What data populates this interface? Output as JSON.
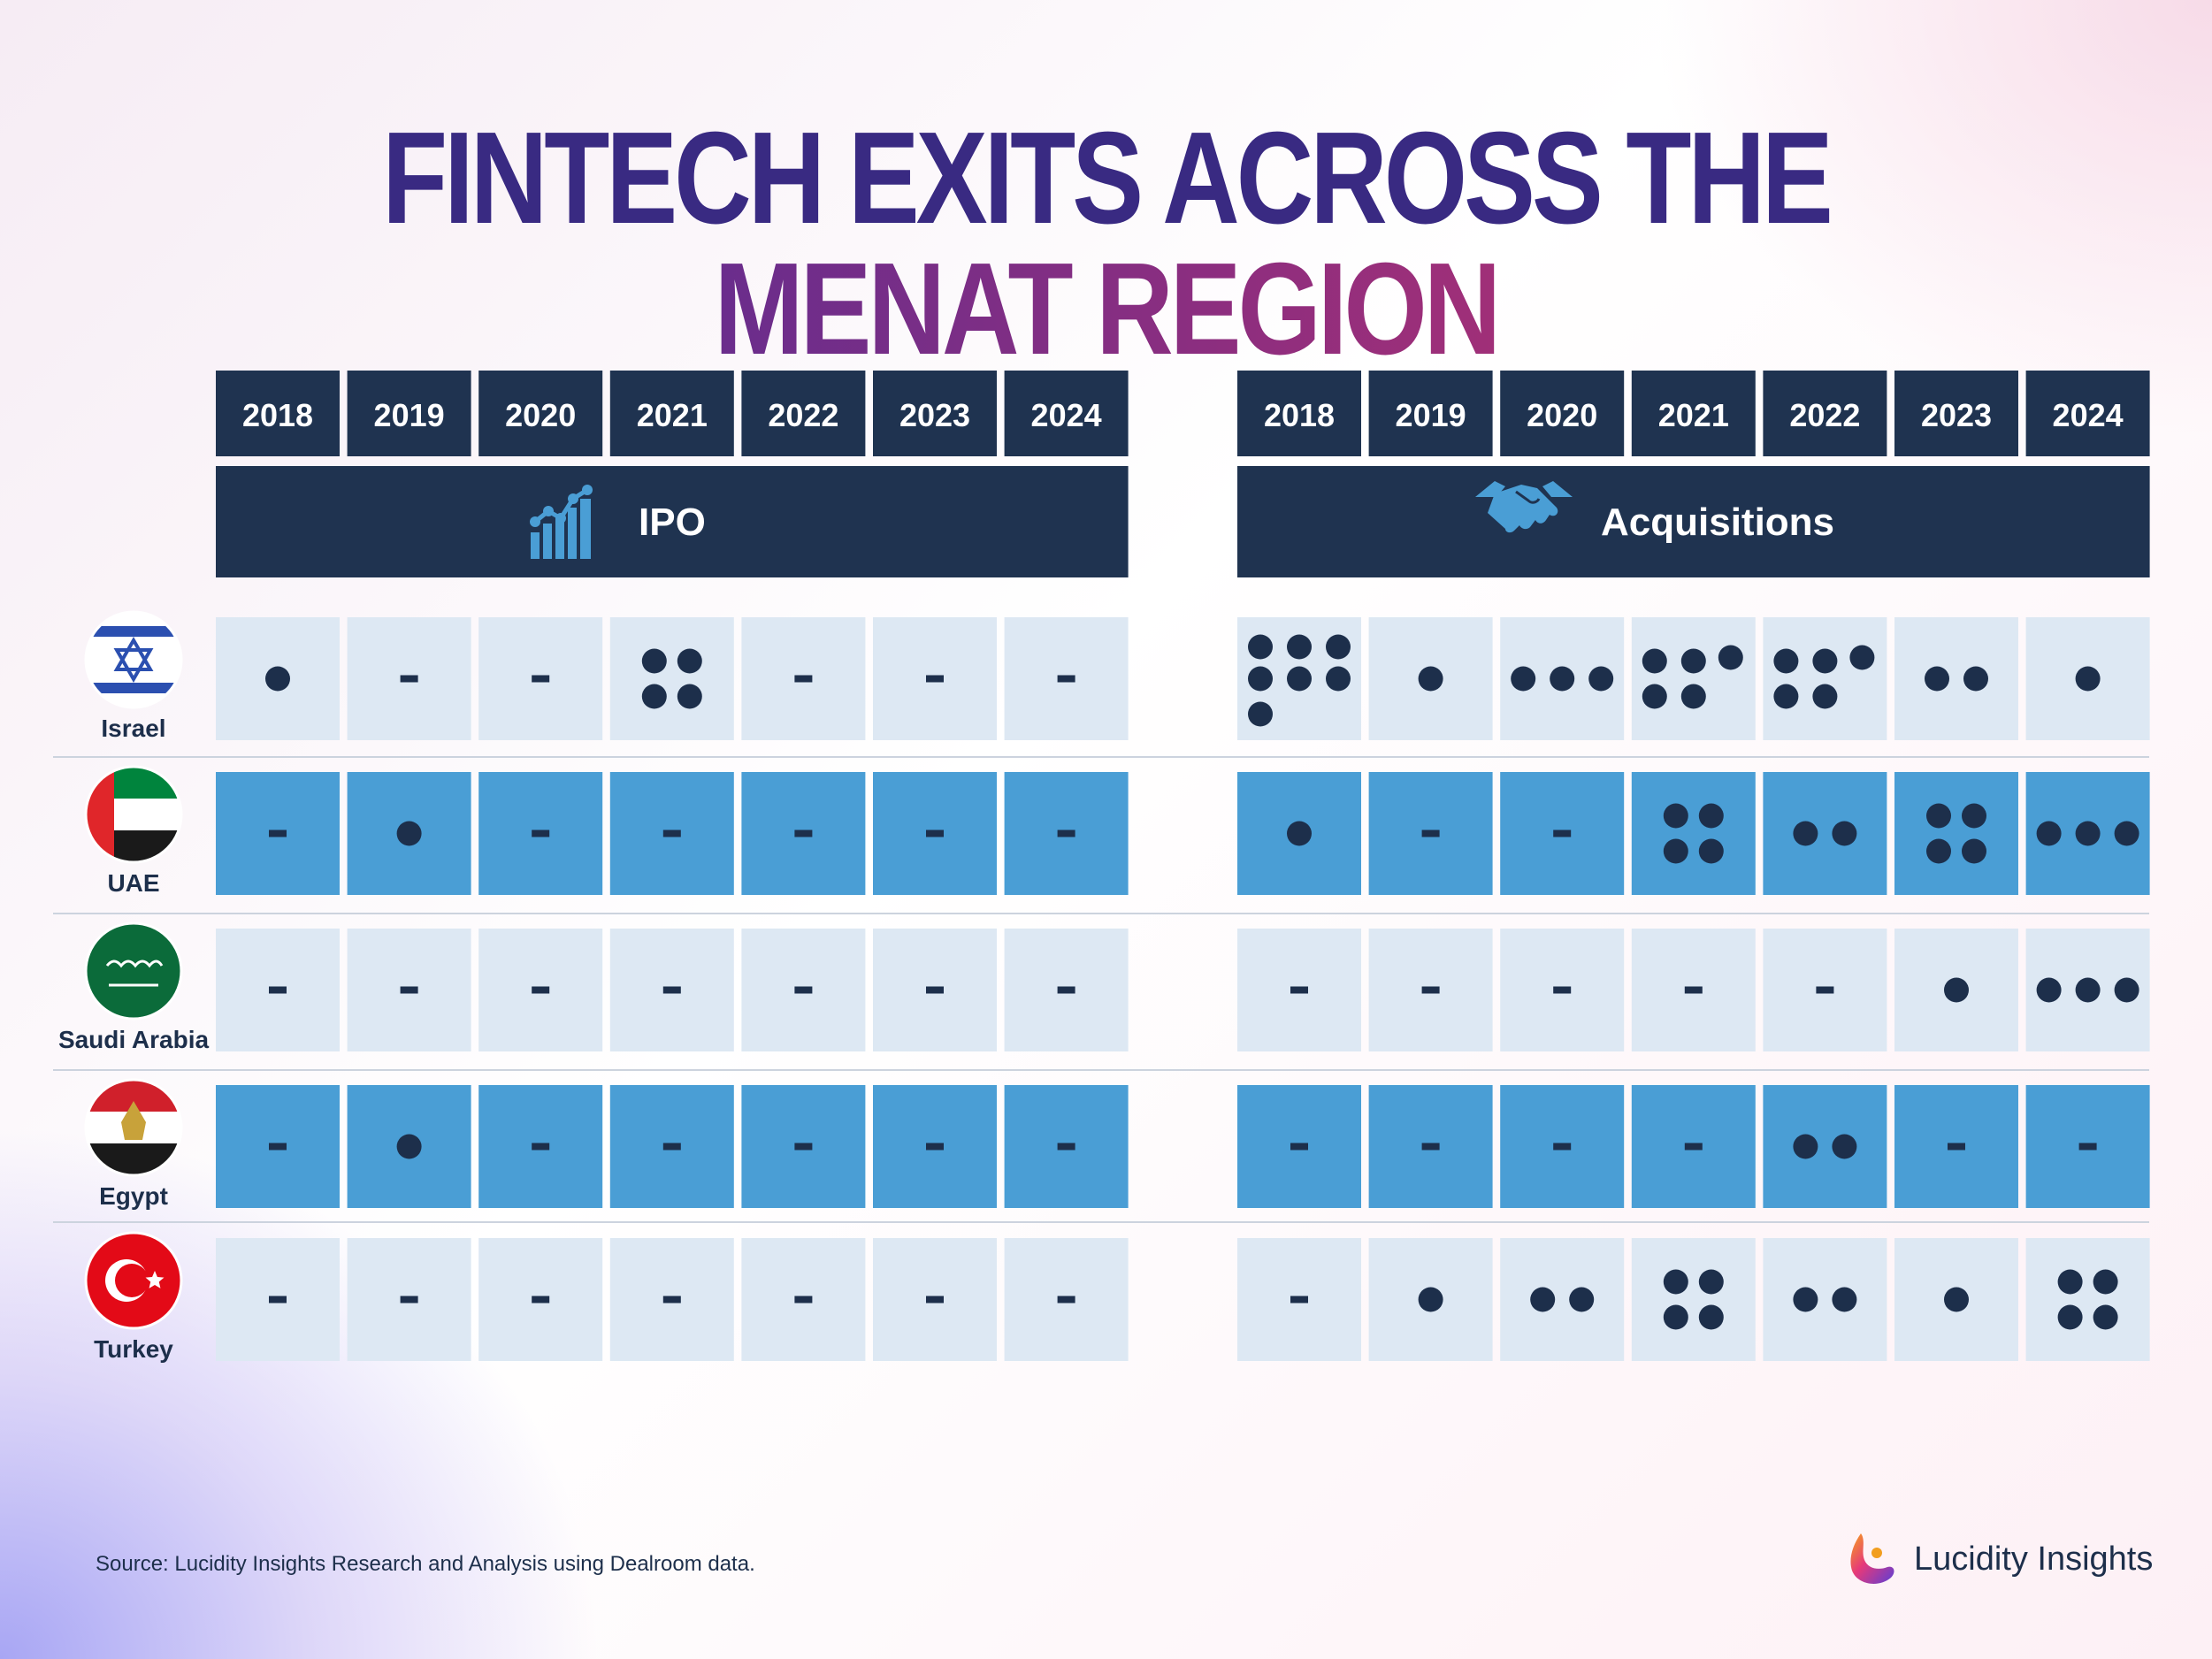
{
  "title": {
    "part1": "FINTECH EXITS ACROSS THE",
    "part2": "MENAT REGION"
  },
  "colors": {
    "navy": "#1f3350",
    "blue": "#4a9ed5",
    "light_cell": "#dde8f3",
    "dot": "#1d2f4b"
  },
  "chart_data": {
    "type": "table",
    "title": "FINTECH EXITS ACROSS THE MENAT REGION",
    "years": [
      "2018",
      "2019",
      "2020",
      "2021",
      "2022",
      "2023",
      "2024"
    ],
    "groups": [
      {
        "name": "IPO",
        "icon": "bar-growth-icon"
      },
      {
        "name": "Acquisitions",
        "icon": "handshake-icon"
      }
    ],
    "rows": [
      {
        "country": "Israel",
        "flag": "israel-flag-icon",
        "ipo": [
          1,
          0,
          0,
          4,
          0,
          0,
          0
        ],
        "acquisitions": [
          7,
          1,
          3,
          5,
          5,
          2,
          1
        ]
      },
      {
        "country": "UAE",
        "flag": "uae-flag-icon",
        "ipo": [
          0,
          1,
          0,
          0,
          0,
          0,
          0
        ],
        "acquisitions": [
          1,
          0,
          0,
          4,
          2,
          4,
          3
        ]
      },
      {
        "country": "Saudi Arabia",
        "flag": "saudi-flag-icon",
        "ipo": [
          0,
          0,
          0,
          0,
          0,
          0,
          0
        ],
        "acquisitions": [
          0,
          0,
          0,
          0,
          0,
          1,
          3
        ]
      },
      {
        "country": "Egypt",
        "flag": "egypt-flag-icon",
        "ipo": [
          0,
          1,
          0,
          0,
          0,
          0,
          0
        ],
        "acquisitions": [
          0,
          0,
          0,
          0,
          2,
          0,
          0
        ]
      },
      {
        "country": "Turkey",
        "flag": "turkey-flag-icon",
        "ipo": [
          0,
          0,
          0,
          0,
          0,
          0,
          0
        ],
        "acquisitions": [
          0,
          1,
          2,
          4,
          2,
          1,
          4
        ]
      }
    ]
  },
  "footer": {
    "source": "Source: Lucidity Insights Research and Analysis using Dealroom data.",
    "brand": "Lucidity Insights"
  }
}
